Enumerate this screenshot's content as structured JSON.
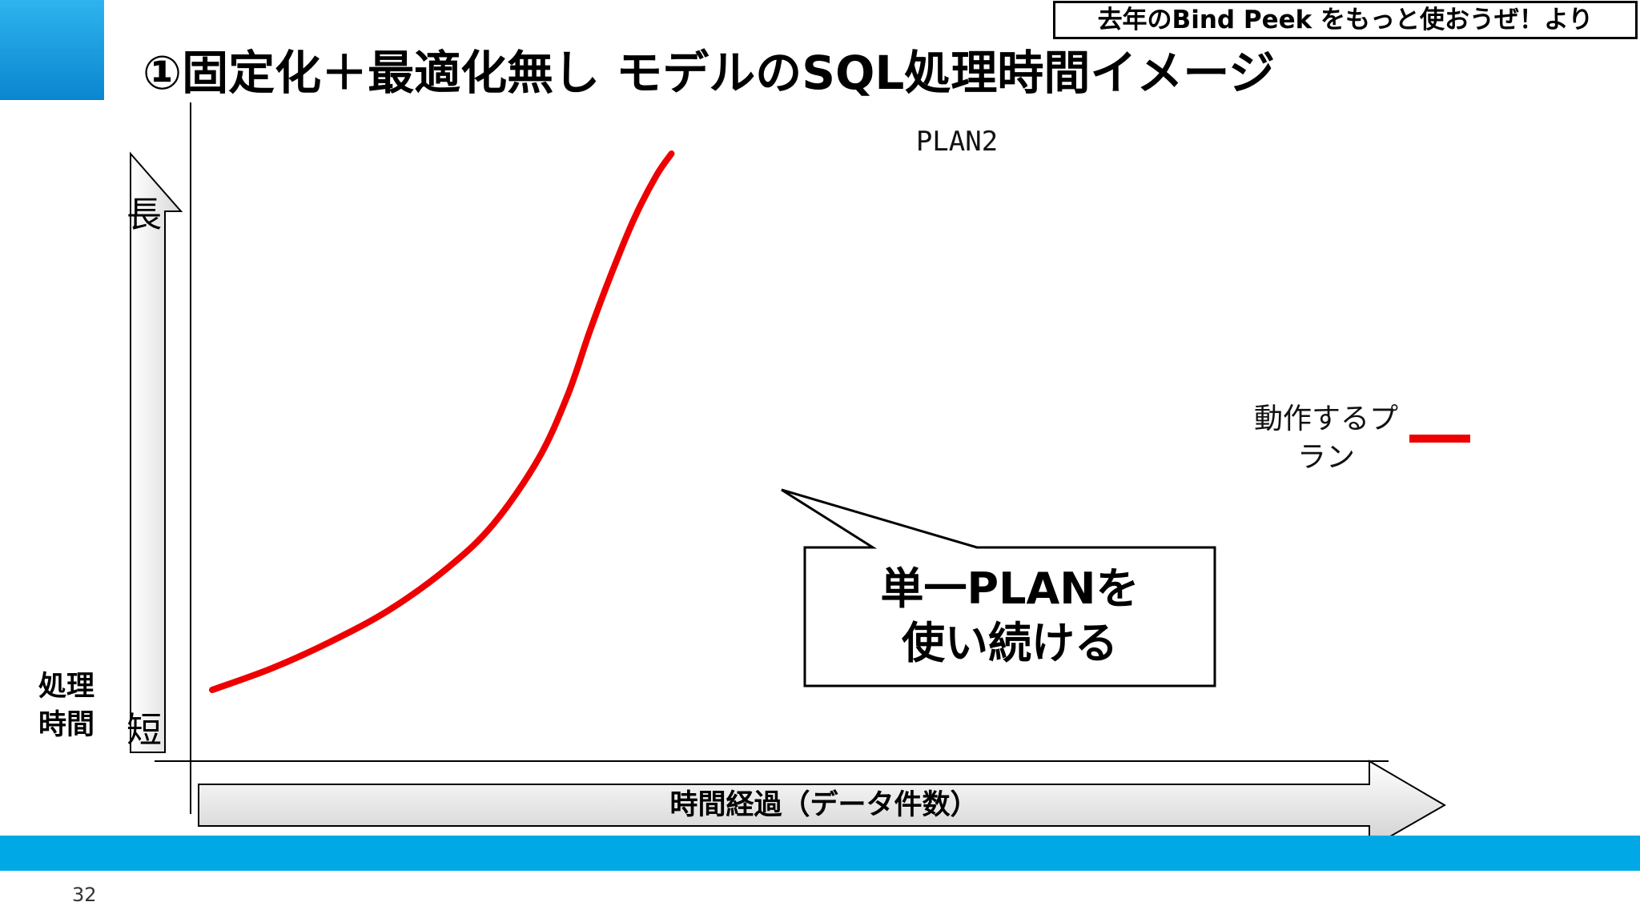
{
  "slide": {
    "title": "①固定化＋最適化無し モデルのSQL処理時間イメージ",
    "source_note": "去年のBind Peek をもっと使おうぜ！より",
    "page_number": "32",
    "accent_color": "#0a86cf",
    "band_color": "#00a9e6"
  },
  "chart_data": {
    "type": "line",
    "title": "",
    "ylabel": [
      "処理",
      "時間"
    ],
    "ylabel_top": "長",
    "ylabel_bottom": "短",
    "xlabel": "時間経過（データ件数）",
    "xlim": [
      0,
      1
    ],
    "ylim": [
      0,
      1
    ],
    "grid": false,
    "series": [
      {
        "name": "動作するプラン",
        "color": "#ee0000",
        "x": [
          0.0,
          0.08,
          0.16,
          0.24,
          0.32,
          0.38,
          0.44,
          0.48,
          0.51,
          0.54,
          0.57,
          0.6,
          0.62
        ],
        "y": [
          0.0,
          0.04,
          0.09,
          0.15,
          0.23,
          0.31,
          0.43,
          0.55,
          0.67,
          0.78,
          0.88,
          0.96,
          1.0
        ]
      }
    ],
    "annotations": {
      "end_label": "PLAN2",
      "callout": [
        "単一PLANを",
        "使い続ける"
      ]
    },
    "legend": {
      "position": "right",
      "label": "動作するプラン"
    }
  }
}
